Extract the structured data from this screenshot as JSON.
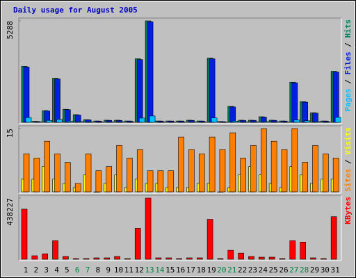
{
  "title": "Daily usage for August 2005",
  "chart_data": [
    {
      "type": "bar",
      "categories": [
        "1",
        "2",
        "3",
        "4",
        "5",
        "6",
        "7",
        "8",
        "9",
        "10",
        "11",
        "12",
        "13",
        "14",
        "15",
        "16",
        "17",
        "18",
        "19",
        "20",
        "21",
        "22",
        "23",
        "24",
        "25",
        "26",
        "27",
        "28",
        "29",
        "30",
        "31"
      ],
      "category_colors": [
        "#000000",
        "#000000",
        "#000000",
        "#000000",
        "#000000",
        "#008040",
        "#008040",
        "#000000",
        "#000000",
        "#000000",
        "#000000",
        "#000000",
        "#008040",
        "#008040",
        "#000000",
        "#000000",
        "#000000",
        "#000000",
        "#000000",
        "#008040",
        "#008040",
        "#000000",
        "#000000",
        "#000000",
        "#000000",
        "#000000",
        "#008040",
        "#008040",
        "#000000",
        "#000000",
        "#000000"
      ],
      "ylim": [
        0,
        5288
      ],
      "yticks": [
        5288
      ],
      "legend_separator": " / ",
      "series": [
        {
          "name": "Hits",
          "color": "#00805c",
          "values": [
            2920,
            50,
            610,
            2300,
            680,
            400,
            140,
            70,
            110,
            110,
            70,
            3310,
            5288,
            70,
            70,
            70,
            110,
            70,
            3350,
            40,
            830,
            110,
            110,
            290,
            110,
            70,
            2090,
            1080,
            500,
            70,
            2660
          ]
        },
        {
          "name": "Files",
          "color": "#0020e0",
          "values": [
            2880,
            45,
            590,
            2260,
            660,
            380,
            130,
            65,
            100,
            100,
            65,
            3270,
            5240,
            65,
            65,
            65,
            100,
            65,
            3310,
            35,
            800,
            100,
            100,
            270,
            100,
            65,
            2060,
            1050,
            480,
            65,
            2620
          ]
        },
        {
          "name": "Pages",
          "color": "#00c0ff",
          "values": [
            250,
            30,
            100,
            150,
            60,
            40,
            30,
            20,
            30,
            30,
            20,
            220,
            330,
            20,
            20,
            20,
            30,
            20,
            230,
            10,
            60,
            30,
            30,
            40,
            30,
            20,
            120,
            80,
            40,
            20,
            260
          ]
        }
      ]
    },
    {
      "type": "bar",
      "categories": [
        "1",
        "2",
        "3",
        "4",
        "5",
        "6",
        "7",
        "8",
        "9",
        "10",
        "11",
        "12",
        "13",
        "14",
        "15",
        "16",
        "17",
        "18",
        "19",
        "20",
        "21",
        "22",
        "23",
        "24",
        "25",
        "26",
        "27",
        "28",
        "29",
        "30",
        "31"
      ],
      "ylim": [
        0,
        15
      ],
      "yticks": [
        15
      ],
      "legend_separator": " / ",
      "series": [
        {
          "name": "Visits",
          "color": "#ffff00",
          "values": [
            3,
            3,
            6,
            3,
            2,
            1,
            4,
            0,
            2,
            4,
            1,
            3,
            2,
            2,
            1,
            1,
            1,
            2,
            2,
            0,
            1,
            4,
            6,
            4,
            2,
            1,
            6,
            4,
            2,
            3,
            3
          ]
        },
        {
          "name": "Sites",
          "color": "#ff8000",
          "values": [
            9,
            8,
            12,
            9,
            7,
            2,
            9,
            5,
            6,
            11,
            8,
            10,
            5,
            5,
            5,
            13,
            10,
            9,
            13,
            10,
            14,
            8,
            11,
            15,
            12,
            10,
            15,
            7,
            11,
            9,
            8
          ]
        }
      ]
    },
    {
      "type": "bar",
      "categories": [
        "1",
        "2",
        "3",
        "4",
        "5",
        "6",
        "7",
        "8",
        "9",
        "10",
        "11",
        "12",
        "13",
        "14",
        "15",
        "16",
        "17",
        "18",
        "19",
        "20",
        "21",
        "22",
        "23",
        "24",
        "25",
        "26",
        "27",
        "28",
        "29",
        "30",
        "31"
      ],
      "ylim": [
        0,
        438227
      ],
      "yticks": [
        438227
      ],
      "series": [
        {
          "name": "KBytes",
          "color": "#ff0000",
          "values": [
            359000,
            25000,
            39000,
            133000,
            20000,
            5000,
            5000,
            10000,
            10000,
            20000,
            5000,
            222000,
            438227,
            10000,
            10000,
            5000,
            10000,
            10000,
            286000,
            5000,
            64000,
            44000,
            20000,
            15000,
            15000,
            5000,
            133000,
            123000,
            10000,
            5000,
            305000
          ]
        }
      ]
    }
  ]
}
